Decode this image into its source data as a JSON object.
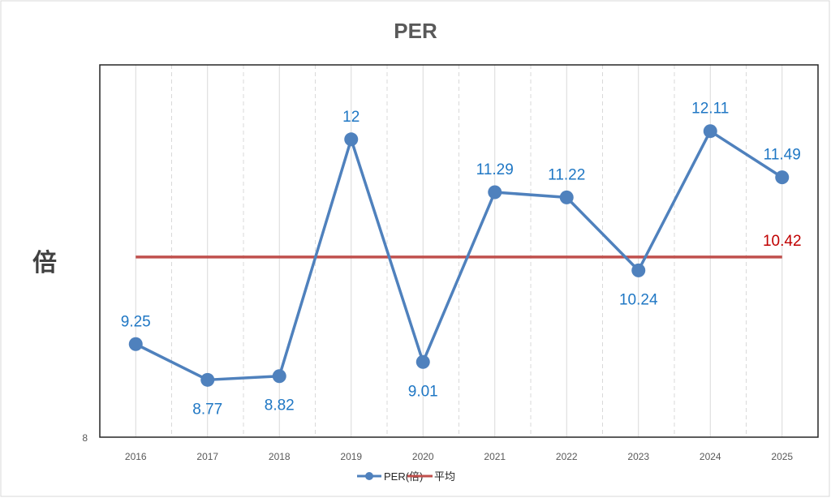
{
  "chart_data": {
    "type": "line",
    "title": "PER",
    "ylabel": "倍",
    "xlabel": "",
    "categories": [
      "2016",
      "2017",
      "2018",
      "2019",
      "2020",
      "2021",
      "2022",
      "2023",
      "2024",
      "2025"
    ],
    "ylim": [
      8,
      13
    ],
    "y_tick_labels": [
      "8"
    ],
    "grid": "vertical",
    "legend": "bottom",
    "series": [
      {
        "name": "PER(倍)",
        "values": [
          9.25,
          8.77,
          8.82,
          12,
          9.01,
          11.29,
          11.22,
          10.24,
          12.11,
          11.49
        ],
        "color": "#4f81bd",
        "label_color": "#1f77c4",
        "markers": true,
        "labels": [
          "9.25",
          "8.77",
          "8.82",
          "12",
          "9.01",
          "11.29",
          "11.22",
          "10.24",
          "12.11",
          "11.49"
        ]
      },
      {
        "name": "平均",
        "values": [
          10.42,
          10.42,
          10.42,
          10.42,
          10.42,
          10.42,
          10.42,
          10.42,
          10.42,
          10.42
        ],
        "color": "#c0504d",
        "label": "10.42",
        "label_color": "#c00000"
      }
    ]
  }
}
